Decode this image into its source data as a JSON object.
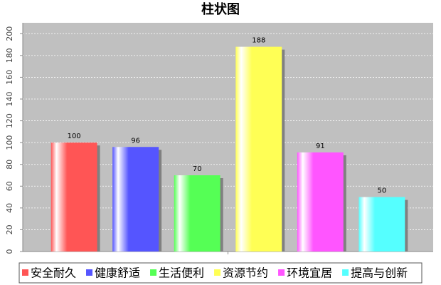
{
  "chart_data": {
    "type": "bar",
    "title": "柱状图",
    "categories": [
      null
    ],
    "series": [
      {
        "name": "安全耐久",
        "color": "#ff5555",
        "values": [
          100
        ]
      },
      {
        "name": "健康舒适",
        "color": "#5555ff",
        "values": [
          96
        ]
      },
      {
        "name": "生活便利",
        "color": "#55ff55",
        "values": [
          70
        ]
      },
      {
        "name": "资源节约",
        "color": "#ffff55",
        "values": [
          188
        ]
      },
      {
        "name": "环境宜居",
        "color": "#ff55ff",
        "values": [
          91
        ]
      },
      {
        "name": "提高与创新",
        "color": "#55ffff",
        "values": [
          50
        ]
      }
    ],
    "ylim": [
      0,
      210
    ],
    "yticks": [
      0,
      20,
      40,
      60,
      80,
      100,
      120,
      140,
      160,
      180,
      200
    ],
    "grid": true,
    "legend": "bottom"
  }
}
